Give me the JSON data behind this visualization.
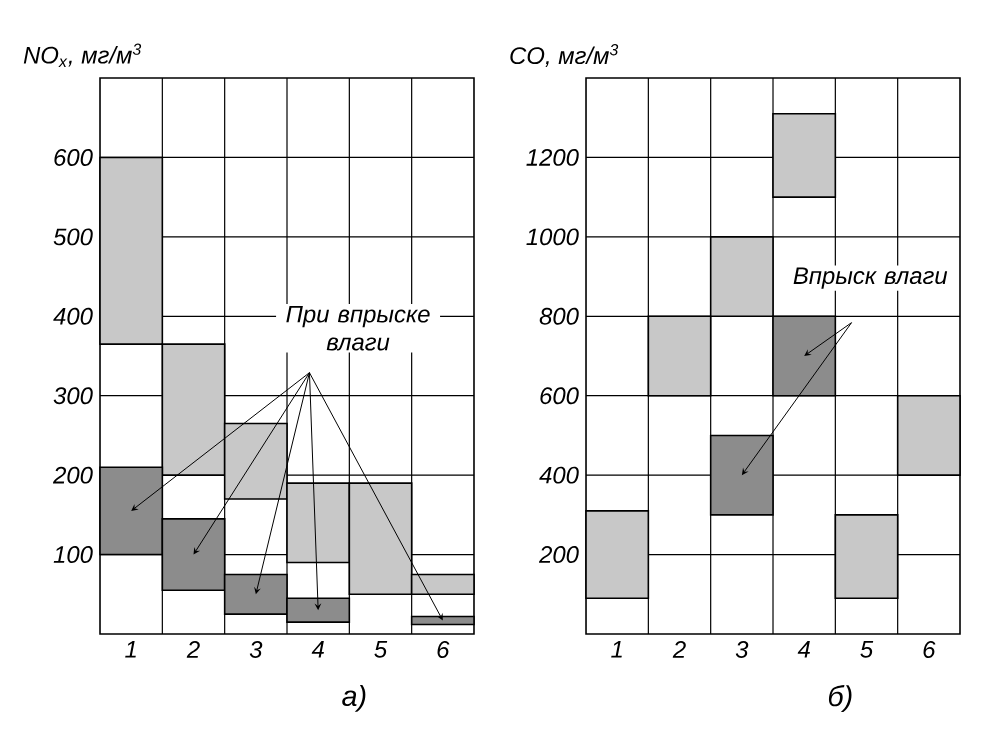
{
  "chart_data": [
    {
      "type": "bar",
      "ylabel": "NO$_{x}$, мг/м$^{3}$",
      "categories": [
        "1",
        "2",
        "3",
        "4",
        "5",
        "6"
      ],
      "series": [
        {
          "color": "#c8c8c8",
          "base": [
            365,
            200,
            170,
            90,
            50,
            50
          ],
          "values": [
            235,
            165,
            95,
            100,
            140,
            25
          ]
        },
        {
          "color": "#8c8c8c",
          "base": [
            100,
            55,
            25,
            15,
            null,
            12
          ],
          "values": [
            110,
            90,
            50,
            30,
            null,
            10
          ]
        }
      ],
      "ylim": [
        0,
        700
      ],
      "yticks": [
        100,
        200,
        300,
        400,
        500,
        600
      ],
      "grid": true,
      "annotations": [
        "При впрыске влаги",
        "а)"
      ]
    },
    {
      "type": "bar",
      "ylabel": "CO, мг/м$^{3}$",
      "categories": [
        "1",
        "2",
        "3",
        "4",
        "5",
        "6"
      ],
      "series": [
        {
          "color": "#c8c8c8",
          "base": [
            90,
            600,
            800,
            1100,
            90,
            400
          ],
          "values": [
            220,
            200,
            200,
            210,
            210,
            200
          ]
        },
        {
          "color": "#8c8c8c",
          "base": [
            null,
            null,
            300,
            600,
            null,
            null
          ],
          "values": [
            null,
            null,
            200,
            200,
            null,
            null
          ]
        }
      ],
      "ylim": [
        0,
        1400
      ],
      "yticks": [
        200,
        400,
        600,
        800,
        1000,
        1200
      ],
      "grid": true,
      "annotations": [
        "Впрыск влаги",
        "б)"
      ]
    }
  ]
}
